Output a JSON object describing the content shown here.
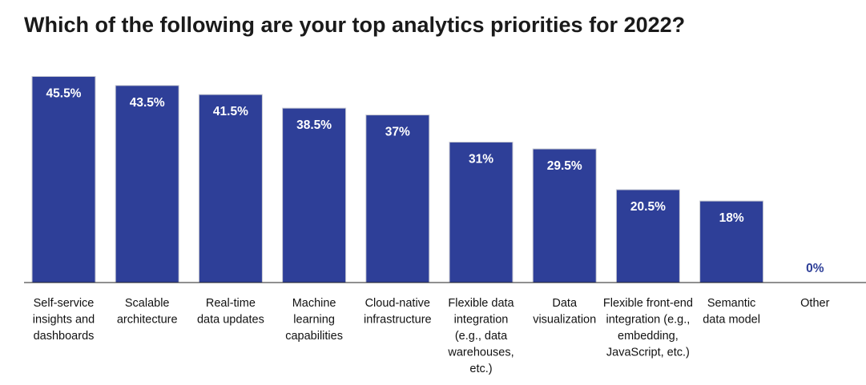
{
  "chart_data": {
    "type": "bar",
    "title": "Which of the following are your top analytics priorities for 2022?",
    "categories": [
      [
        "Self-service",
        "insights and",
        "dashboards"
      ],
      [
        "Scalable",
        "architecture"
      ],
      [
        "Real-time",
        "data updates"
      ],
      [
        "Machine",
        "learning",
        "capabilities"
      ],
      [
        "Cloud-native",
        "infrastructure"
      ],
      [
        "Flexible data",
        "integration",
        "(e.g., data",
        "warehouses,",
        "etc.)"
      ],
      [
        "Data",
        "visualization"
      ],
      [
        "Flexible front-end",
        "integration (e.g.,",
        "embedding,",
        "JavaScript, etc.)"
      ],
      [
        "Semantic",
        "data model"
      ],
      [
        "Other"
      ]
    ],
    "values": [
      45.5,
      43.5,
      41.5,
      38.5,
      37,
      31,
      29.5,
      20.5,
      18,
      0
    ],
    "value_labels": [
      "45.5%",
      "43.5%",
      "41.5%",
      "38.5%",
      "37%",
      "31%",
      "29.5%",
      "20.5%",
      "18%",
      "0%"
    ],
    "xlabel": "",
    "ylabel": "",
    "ylim": [
      0,
      45.5
    ],
    "grid": false,
    "legend": "none",
    "colors": {
      "bar": "#2e3f98",
      "bar_label_inside": "#ffffff",
      "bar_label_outside": "#2e3f98",
      "axis": "#222222"
    }
  }
}
